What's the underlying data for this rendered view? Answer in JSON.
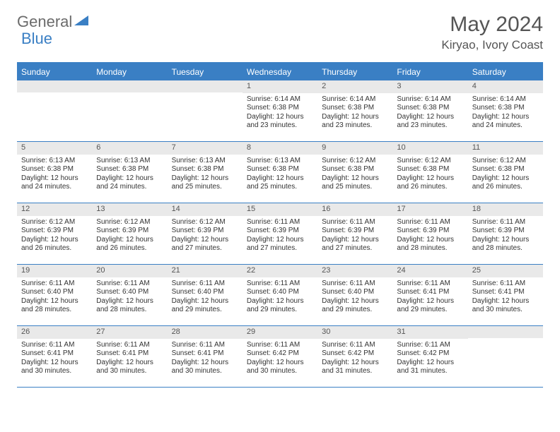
{
  "logo": {
    "text1": "General",
    "text2": "Blue"
  },
  "title": "May 2024",
  "location": "Kiryao, Ivory Coast",
  "colors": {
    "header_bg": "#3a7fc4",
    "daynum_bg": "#e9e9e9",
    "text": "#333333",
    "logo_gray": "#6b6b6b",
    "logo_blue": "#3a7fc4",
    "white": "#ffffff"
  },
  "weekdays": [
    "Sunday",
    "Monday",
    "Tuesday",
    "Wednesday",
    "Thursday",
    "Friday",
    "Saturday"
  ],
  "weeks": [
    [
      null,
      null,
      null,
      {
        "n": "1",
        "sr": "6:14 AM",
        "ss": "6:38 PM",
        "dl": "12 hours and 23 minutes."
      },
      {
        "n": "2",
        "sr": "6:14 AM",
        "ss": "6:38 PM",
        "dl": "12 hours and 23 minutes."
      },
      {
        "n": "3",
        "sr": "6:14 AM",
        "ss": "6:38 PM",
        "dl": "12 hours and 23 minutes."
      },
      {
        "n": "4",
        "sr": "6:14 AM",
        "ss": "6:38 PM",
        "dl": "12 hours and 24 minutes."
      }
    ],
    [
      {
        "n": "5",
        "sr": "6:13 AM",
        "ss": "6:38 PM",
        "dl": "12 hours and 24 minutes."
      },
      {
        "n": "6",
        "sr": "6:13 AM",
        "ss": "6:38 PM",
        "dl": "12 hours and 24 minutes."
      },
      {
        "n": "7",
        "sr": "6:13 AM",
        "ss": "6:38 PM",
        "dl": "12 hours and 25 minutes."
      },
      {
        "n": "8",
        "sr": "6:13 AM",
        "ss": "6:38 PM",
        "dl": "12 hours and 25 minutes."
      },
      {
        "n": "9",
        "sr": "6:12 AM",
        "ss": "6:38 PM",
        "dl": "12 hours and 25 minutes."
      },
      {
        "n": "10",
        "sr": "6:12 AM",
        "ss": "6:38 PM",
        "dl": "12 hours and 26 minutes."
      },
      {
        "n": "11",
        "sr": "6:12 AM",
        "ss": "6:38 PM",
        "dl": "12 hours and 26 minutes."
      }
    ],
    [
      {
        "n": "12",
        "sr": "6:12 AM",
        "ss": "6:39 PM",
        "dl": "12 hours and 26 minutes."
      },
      {
        "n": "13",
        "sr": "6:12 AM",
        "ss": "6:39 PM",
        "dl": "12 hours and 26 minutes."
      },
      {
        "n": "14",
        "sr": "6:12 AM",
        "ss": "6:39 PM",
        "dl": "12 hours and 27 minutes."
      },
      {
        "n": "15",
        "sr": "6:11 AM",
        "ss": "6:39 PM",
        "dl": "12 hours and 27 minutes."
      },
      {
        "n": "16",
        "sr": "6:11 AM",
        "ss": "6:39 PM",
        "dl": "12 hours and 27 minutes."
      },
      {
        "n": "17",
        "sr": "6:11 AM",
        "ss": "6:39 PM",
        "dl": "12 hours and 28 minutes."
      },
      {
        "n": "18",
        "sr": "6:11 AM",
        "ss": "6:39 PM",
        "dl": "12 hours and 28 minutes."
      }
    ],
    [
      {
        "n": "19",
        "sr": "6:11 AM",
        "ss": "6:40 PM",
        "dl": "12 hours and 28 minutes."
      },
      {
        "n": "20",
        "sr": "6:11 AM",
        "ss": "6:40 PM",
        "dl": "12 hours and 28 minutes."
      },
      {
        "n": "21",
        "sr": "6:11 AM",
        "ss": "6:40 PM",
        "dl": "12 hours and 29 minutes."
      },
      {
        "n": "22",
        "sr": "6:11 AM",
        "ss": "6:40 PM",
        "dl": "12 hours and 29 minutes."
      },
      {
        "n": "23",
        "sr": "6:11 AM",
        "ss": "6:40 PM",
        "dl": "12 hours and 29 minutes."
      },
      {
        "n": "24",
        "sr": "6:11 AM",
        "ss": "6:41 PM",
        "dl": "12 hours and 29 minutes."
      },
      {
        "n": "25",
        "sr": "6:11 AM",
        "ss": "6:41 PM",
        "dl": "12 hours and 30 minutes."
      }
    ],
    [
      {
        "n": "26",
        "sr": "6:11 AM",
        "ss": "6:41 PM",
        "dl": "12 hours and 30 minutes."
      },
      {
        "n": "27",
        "sr": "6:11 AM",
        "ss": "6:41 PM",
        "dl": "12 hours and 30 minutes."
      },
      {
        "n": "28",
        "sr": "6:11 AM",
        "ss": "6:41 PM",
        "dl": "12 hours and 30 minutes."
      },
      {
        "n": "29",
        "sr": "6:11 AM",
        "ss": "6:42 PM",
        "dl": "12 hours and 30 minutes."
      },
      {
        "n": "30",
        "sr": "6:11 AM",
        "ss": "6:42 PM",
        "dl": "12 hours and 31 minutes."
      },
      {
        "n": "31",
        "sr": "6:11 AM",
        "ss": "6:42 PM",
        "dl": "12 hours and 31 minutes."
      },
      null
    ]
  ]
}
